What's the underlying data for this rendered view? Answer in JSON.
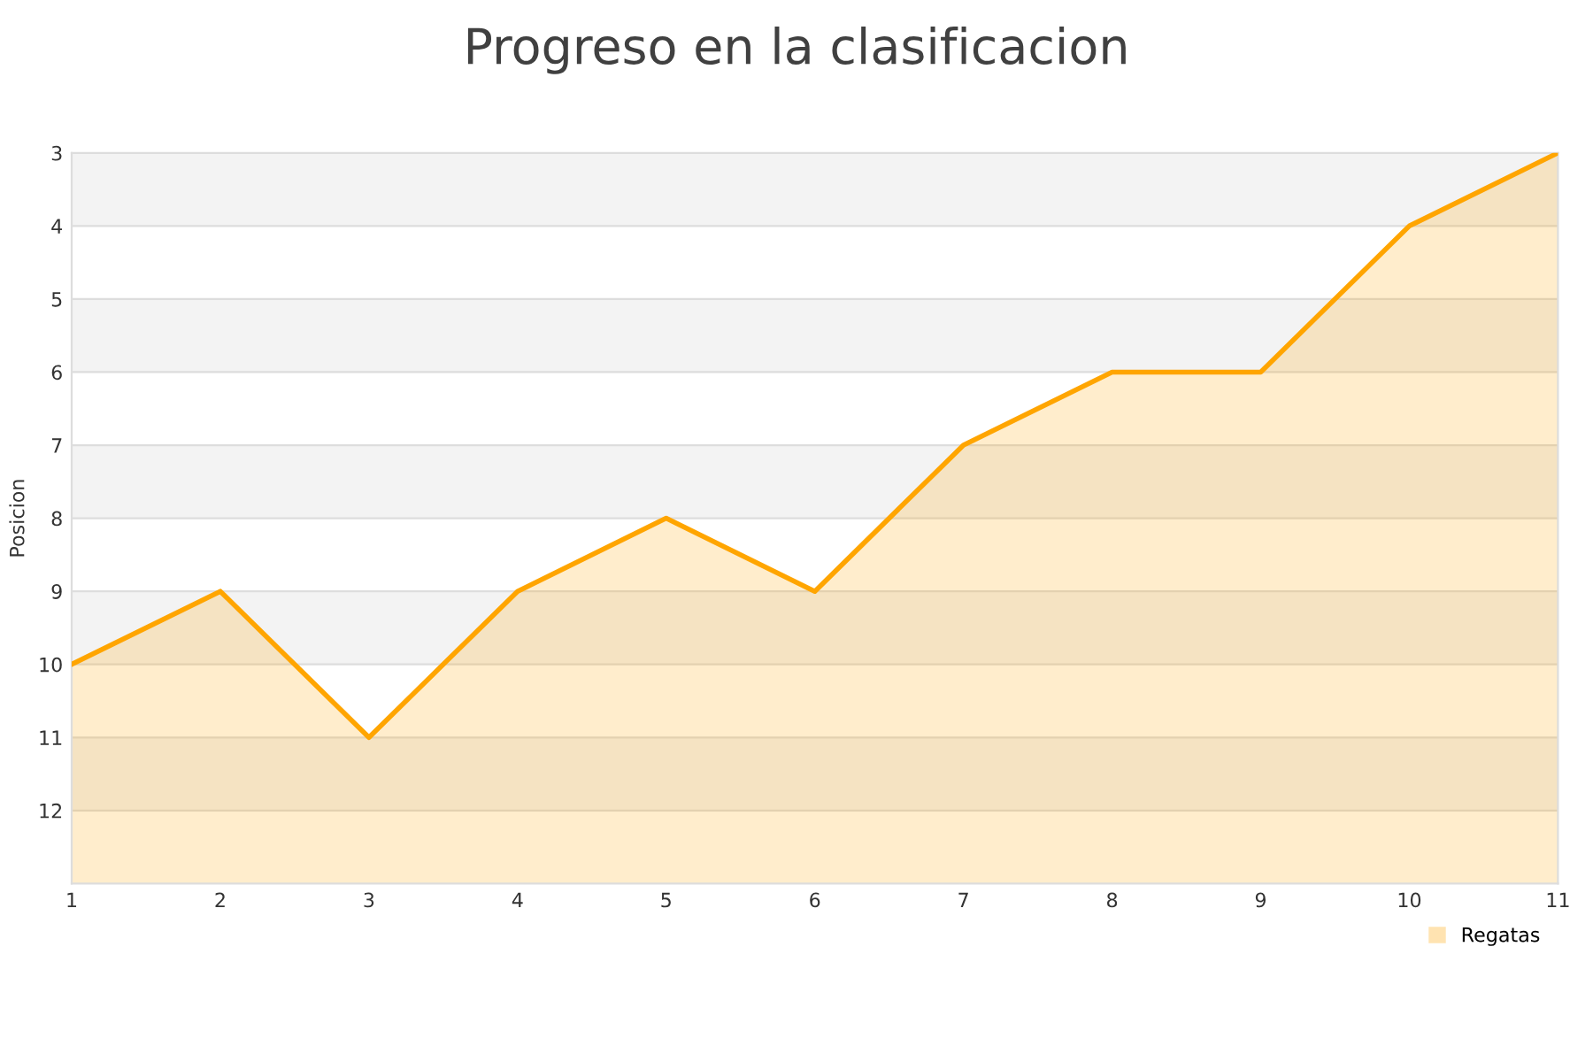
{
  "chart_data": {
    "type": "area",
    "title": "Progreso en la clasificacion",
    "ylabel": "Posicion",
    "x": [
      1,
      2,
      3,
      4,
      5,
      6,
      7,
      8,
      9,
      10,
      11
    ],
    "series": [
      {
        "name": "Regatas",
        "color": "#ffa500",
        "values": [
          10,
          9,
          11,
          9,
          8,
          9,
          7,
          6,
          6,
          4,
          3
        ]
      }
    ],
    "xlim": [
      1,
      11
    ],
    "xticks": [
      1,
      2,
      3,
      4,
      5,
      6,
      7,
      8,
      9,
      10,
      11
    ],
    "ylim": [
      13,
      3
    ],
    "yticks": [
      3,
      4,
      5,
      6,
      7,
      8,
      9,
      10,
      11,
      12
    ],
    "grid": "y",
    "legend": "bottom right"
  }
}
